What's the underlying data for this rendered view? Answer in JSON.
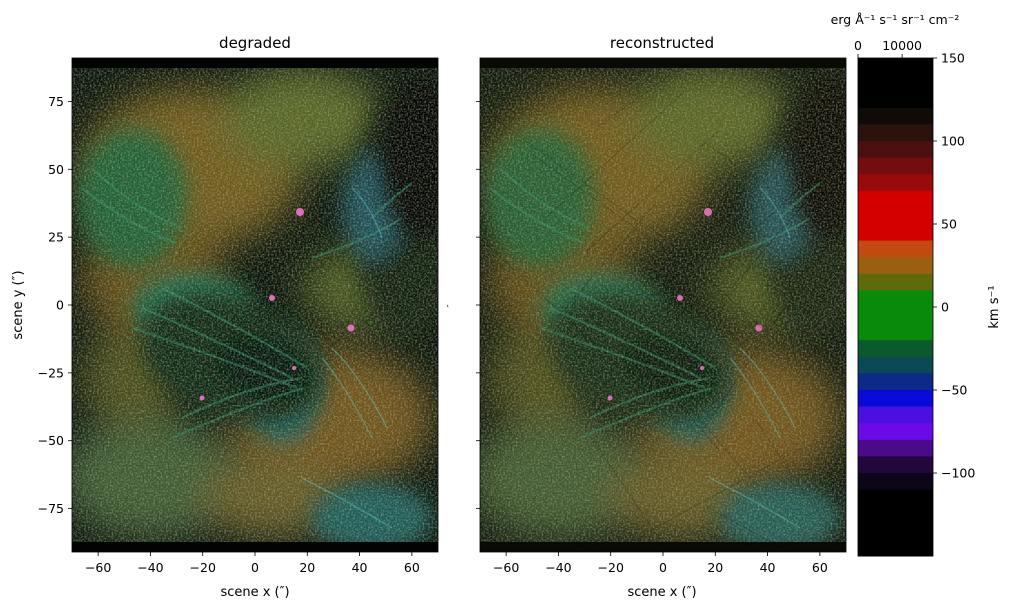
{
  "chart_data": [
    {
      "type": "heatmap",
      "title": "degraded",
      "xlabel": "scene x (″)",
      "ylabel": "scene y (″)",
      "xlim": [
        -70,
        70
      ],
      "ylim": [
        -91,
        91
      ],
      "xticks": [
        -60,
        -40,
        -20,
        0,
        20,
        40,
        60
      ],
      "yticks": [
        -75,
        -50,
        -25,
        0,
        25,
        50,
        75
      ],
      "xtick_labels": [
        "−60",
        "−40",
        "−20",
        "0",
        "20",
        "40",
        "60"
      ],
      "ytick_labels": [
        "−75",
        "−50",
        "−25",
        "0",
        "25",
        "50",
        "75"
      ]
    },
    {
      "type": "heatmap",
      "title": "reconstructed",
      "xlabel": "scene x (″)",
      "ylabel": "″",
      "xlim": [
        -70,
        70
      ],
      "ylim": [
        -91,
        91
      ],
      "xticks": [
        -60,
        -40,
        -20,
        0,
        20,
        40,
        60
      ],
      "xtick_labels": [
        "−60",
        "−40",
        "−20",
        "0",
        "20",
        "40",
        "60"
      ]
    }
  ],
  "colorbar": {
    "top_label": "erg Å⁻¹ s⁻¹ sr⁻¹ cm⁻²",
    "top_range": [
      0,
      17000
    ],
    "top_ticks": [
      0,
      10000
    ],
    "top_tick_labels": [
      "0",
      "10000"
    ],
    "right_label": "km s⁻¹",
    "range": [
      -150,
      150
    ],
    "ticks": [
      150,
      100,
      50,
      0,
      -50,
      -100
    ],
    "tick_labels": [
      "150",
      "100",
      "50",
      "0",
      "−50",
      "−100"
    ],
    "bands": [
      {
        "from": 150,
        "to": 120,
        "color": "#000000"
      },
      {
        "from": 120,
        "to": 110,
        "color": "#0f0c08"
      },
      {
        "from": 110,
        "to": 100,
        "color": "#2a130c"
      },
      {
        "from": 100,
        "to": 90,
        "color": "#4a1010"
      },
      {
        "from": 90,
        "to": 80,
        "color": "#740e0e"
      },
      {
        "from": 80,
        "to": 70,
        "color": "#990a0a"
      },
      {
        "from": 70,
        "to": 40,
        "color": "#d40000"
      },
      {
        "from": 40,
        "to": 30,
        "color": "#c04a10"
      },
      {
        "from": 30,
        "to": 20,
        "color": "#9a6010"
      },
      {
        "from": 20,
        "to": 10,
        "color": "#5e6a0c"
      },
      {
        "from": 10,
        "to": -20,
        "color": "#0a8a0a"
      },
      {
        "from": -20,
        "to": -30,
        "color": "#0b5a2e"
      },
      {
        "from": -30,
        "to": -40,
        "color": "#0b4a55"
      },
      {
        "from": -40,
        "to": -50,
        "color": "#0c2a8a"
      },
      {
        "from": -50,
        "to": -60,
        "color": "#0a0ad8"
      },
      {
        "from": -60,
        "to": -70,
        "color": "#4a10e0"
      },
      {
        "from": -70,
        "to": -80,
        "color": "#6a0ae8"
      },
      {
        "from": -80,
        "to": -90,
        "color": "#4a0a8a"
      },
      {
        "from": -90,
        "to": -100,
        "color": "#22083a"
      },
      {
        "from": -100,
        "to": -110,
        "color": "#0c0618"
      },
      {
        "from": -110,
        "to": -150,
        "color": "#000000"
      }
    ]
  },
  "colors": {
    "background": "#ffffff",
    "image_dark": "#050805",
    "umbra": "#0c2a10",
    "penumbra_green": "#1c6a3a",
    "plage_orange": "#d68a1e",
    "plage_yellow": "#c8c46a",
    "cyan_fibril": "#5ad6d6",
    "bright_point": "#ff7ad6"
  }
}
